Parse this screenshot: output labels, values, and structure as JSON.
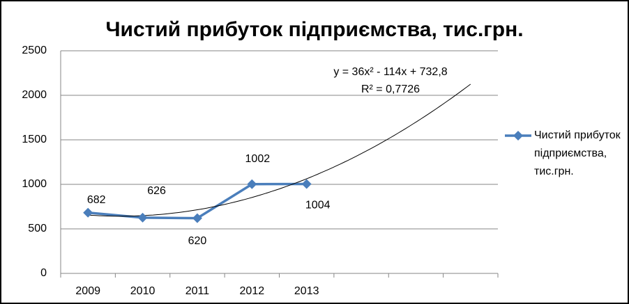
{
  "chart_data": {
    "type": "line",
    "title": "Чистий прибуток підприємства, тис.грн.",
    "categories": [
      "2009",
      "2010",
      "2011",
      "2012",
      "2013",
      null,
      null,
      null
    ],
    "series": [
      {
        "name": "Чистий прибуток підприємства, тис.грн.",
        "color": "#4a7ebb",
        "values": [
          682,
          626,
          620,
          1002,
          1004,
          null,
          null,
          null
        ]
      }
    ],
    "ylim": [
      0,
      2500
    ],
    "yticks": [
      0,
      500,
      1000,
      1500,
      2000,
      2500
    ],
    "grid": true,
    "trendline": {
      "type": "polynomial",
      "order": 2,
      "forward": 3,
      "color": "#000000"
    },
    "annotations": [
      "y = 36x² - 114x + 732,8",
      "R² = 0,7726"
    ],
    "data_labels": true,
    "legend": "right"
  }
}
